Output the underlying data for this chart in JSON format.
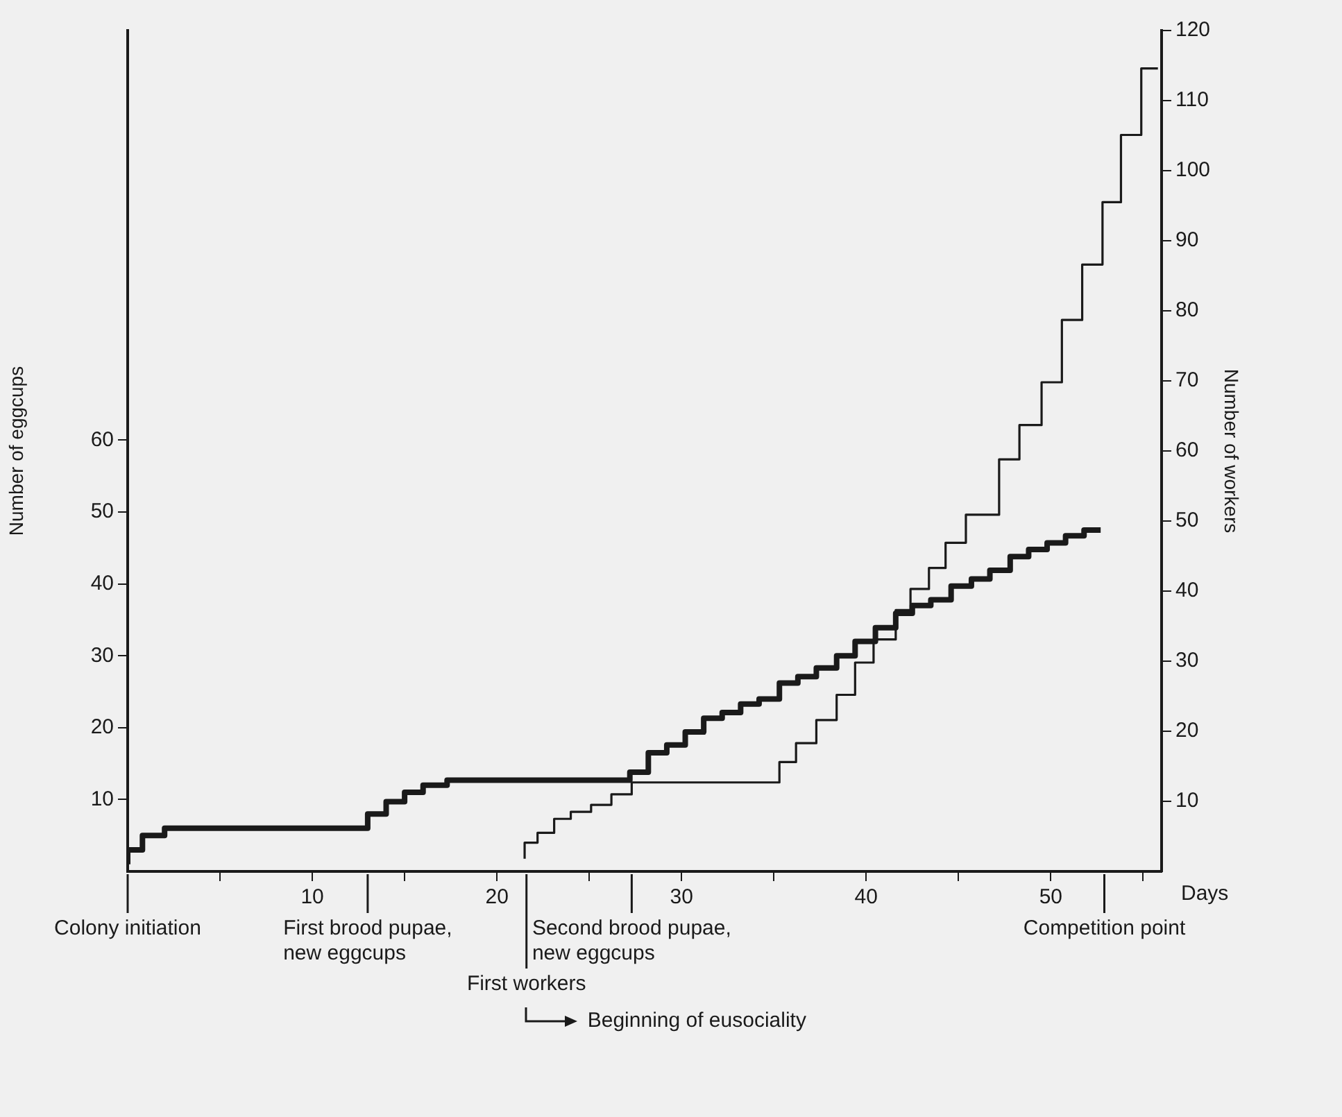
{
  "chart_data": {
    "type": "step",
    "xlabel": "Days",
    "ylabel": "Number of eggcups",
    "y2label": "Number of workers",
    "xlim": [
      0,
      56
    ],
    "xticks": [
      {
        "value": 5,
        "label": null
      },
      10,
      {
        "value": 15,
        "label": null
      },
      20,
      {
        "value": 25,
        "label": null
      },
      30,
      {
        "value": 35,
        "label": null
      },
      40,
      {
        "value": 45,
        "label": null
      },
      50,
      {
        "value": 55,
        "label": null
      }
    ],
    "ylim": [
      0,
      117
    ],
    "yticks": [
      10,
      20,
      30,
      40,
      50,
      60
    ],
    "y2lim": [
      0,
      120
    ],
    "y2ticks": [
      10,
      20,
      30,
      40,
      50,
      60,
      70,
      80,
      90,
      100,
      110,
      120
    ],
    "grid": false,
    "legend": false,
    "series": [
      {
        "color": "#1a1a1a",
        "axis": "y",
        "x": [
          0,
          0.8,
          2,
          13,
          14,
          15,
          16,
          17.3,
          27.2,
          28.2,
          29.2,
          30.2,
          31.2,
          32.2,
          33.2,
          34.2,
          35.3,
          36.3,
          37.3,
          38.4,
          39.4,
          40.5,
          41.6,
          42.5,
          43.5,
          44.6,
          45.7,
          46.7,
          47.8,
          48.8,
          49.8,
          50.8,
          51.8,
          52.7
        ],
        "values": [
          1,
          3,
          5,
          6,
          8,
          9.7,
          11,
          12,
          12.7,
          13.8,
          16.5,
          17.6,
          19.4,
          21.3,
          22.1,
          23.3,
          24,
          26.2,
          27.1,
          28.3,
          30,
          32,
          33.9,
          35.9,
          37,
          37.8,
          39.7,
          40.7,
          41.9,
          43.8,
          44.8,
          45.7,
          46.7,
          47.5
        ]
      },
      {
        "color": "#1a1a1a",
        "axis": "y2",
        "x": [
          21.5,
          22.2,
          23.1,
          24,
          25.1,
          26.2,
          27.3,
          35.3,
          36.2,
          37.3,
          38.4,
          39.4,
          40.4,
          41.6,
          42.4,
          43.4,
          44.3,
          45.4,
          47.2,
          48.3,
          49.5,
          50.6,
          51.7,
          52.8,
          53.8,
          54.9,
          55.8
        ],
        "values": [
          1.8,
          4.1,
          5.5,
          7.5,
          8.5,
          9.5,
          11,
          12.7,
          15.6,
          18.3,
          21.6,
          25.2,
          29.8,
          33.1,
          37.3,
          40.3,
          43.3,
          46.9,
          50.9,
          58.8,
          63.7,
          69.8,
          78.7,
          86.6,
          95.5,
          105.1,
          114.6
        ]
      }
    ],
    "ref_lines": [
      {
        "axis": "x",
        "value": 0,
        "label": "Colony initiation"
      },
      {
        "axis": "x",
        "value": 13,
        "label": "First brood pupae, new eggcups"
      },
      {
        "axis": "x",
        "value": 21.6,
        "label": "First workers"
      },
      {
        "axis": "x",
        "value": 27.3,
        "label": "Second brood pupae, new eggcups"
      },
      {
        "axis": "x",
        "value": 52.9,
        "label": "Competition point"
      }
    ],
    "annotations": [
      "Beginning of eusociality"
    ]
  }
}
